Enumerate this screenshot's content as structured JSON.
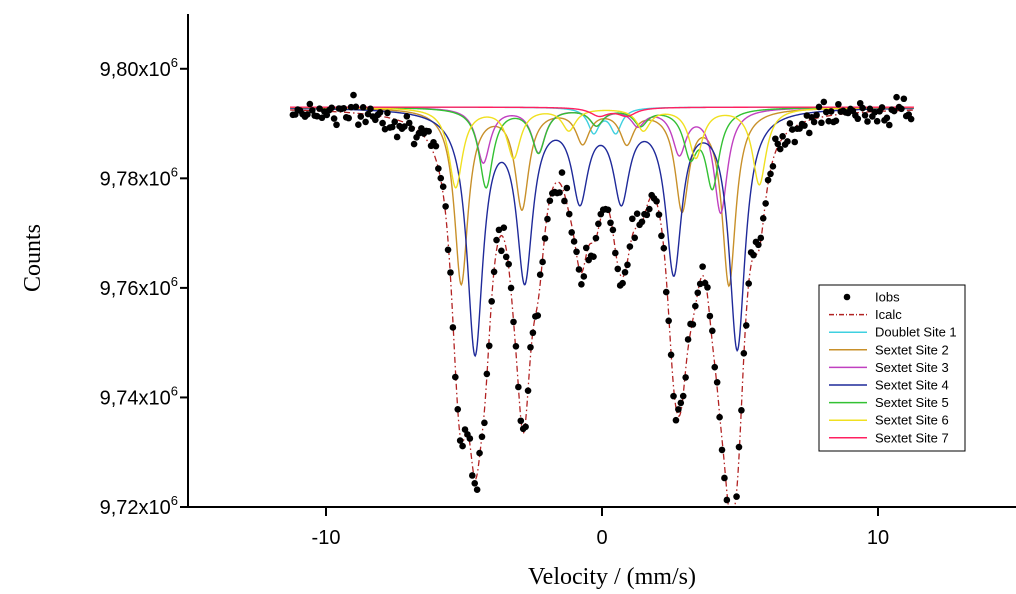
{
  "chart_data": {
    "type": "scatter",
    "xlabel": "Velocity / (mm/s)",
    "ylabel": "Counts",
    "xlim": [
      -15,
      15
    ],
    "ylim": [
      9720000,
      9810000
    ],
    "x_ticks": [
      -10,
      0,
      10
    ],
    "x_tick_labels": [
      "-10",
      "0",
      "10"
    ],
    "y_ticks": [
      9720000,
      9740000,
      9760000,
      9780000,
      9800000
    ],
    "y_tick_labels": [
      {
        "mantissa": "9,72x10",
        "exp": "6"
      },
      {
        "mantissa": "9,74x10",
        "exp": "6"
      },
      {
        "mantissa": "9,76x10",
        "exp": "6"
      },
      {
        "mantissa": "9,78x10",
        "exp": "6"
      },
      {
        "mantissa": "9,80x10",
        "exp": "6"
      }
    ],
    "grid": false,
    "legend_position": "lower-right",
    "baseline": 9793000,
    "series": [
      {
        "name": "Iobs",
        "kind": "points",
        "color": "#000000"
      },
      {
        "name": "Icalc",
        "kind": "line",
        "style": "dash-dot",
        "color": "#b22222"
      },
      {
        "name": "Doublet Site 1",
        "kind": "line",
        "color": "#3fd0e0",
        "lines": [
          {
            "x": -0.3,
            "depth": 4500,
            "width": 0.25
          },
          {
            "x": 0.5,
            "depth": 4500,
            "width": 0.25
          }
        ]
      },
      {
        "name": "Sextet Site 2",
        "kind": "line",
        "color": "#c8902a",
        "lines": [
          {
            "x": -5.1,
            "depth": 32000,
            "width": 0.3
          },
          {
            "x": -2.9,
            "depth": 18000,
            "width": 0.3
          },
          {
            "x": -0.7,
            "depth": 6000,
            "width": 0.3
          },
          {
            "x": 0.9,
            "depth": 6000,
            "width": 0.3
          },
          {
            "x": 2.9,
            "depth": 18000,
            "width": 0.3
          },
          {
            "x": 4.6,
            "depth": 32000,
            "width": 0.3
          }
        ]
      },
      {
        "name": "Sextet Site 3",
        "kind": "line",
        "color": "#c040c0",
        "lines": [
          {
            "x": -4.3,
            "depth": 10000,
            "width": 0.3
          },
          {
            "x": -2.3,
            "depth": 8000,
            "width": 0.3
          },
          {
            "x": -0.2,
            "depth": 3000,
            "width": 0.3
          },
          {
            "x": 1.3,
            "depth": 3000,
            "width": 0.3
          },
          {
            "x": 2.8,
            "depth": 8000,
            "width": 0.3
          },
          {
            "x": 4.3,
            "depth": 19000,
            "width": 0.3
          }
        ]
      },
      {
        "name": "Sextet Site 4",
        "kind": "line",
        "color": "#1f2a9a",
        "lines": [
          {
            "x": -4.6,
            "depth": 44000,
            "width": 0.35
          },
          {
            "x": -2.8,
            "depth": 30000,
            "width": 0.35
          },
          {
            "x": -0.8,
            "depth": 15500,
            "width": 0.35
          },
          {
            "x": 0.7,
            "depth": 15500,
            "width": 0.35
          },
          {
            "x": 2.6,
            "depth": 29000,
            "width": 0.35
          },
          {
            "x": 4.9,
            "depth": 43500,
            "width": 0.35
          }
        ]
      },
      {
        "name": "Sextet Site 5",
        "kind": "line",
        "color": "#33c133",
        "lines": [
          {
            "x": -4.2,
            "depth": 14500,
            "width": 0.3
          },
          {
            "x": -2.3,
            "depth": 8000,
            "width": 0.3
          },
          {
            "x": -0.2,
            "depth": 3000,
            "width": 0.3
          },
          {
            "x": 1.4,
            "depth": 3000,
            "width": 0.3
          },
          {
            "x": 3.2,
            "depth": 8000,
            "width": 0.3
          },
          {
            "x": 4.0,
            "depth": 14000,
            "width": 0.3
          }
        ]
      },
      {
        "name": "Sextet Site 6",
        "kind": "line",
        "color": "#f0e020",
        "lines": [
          {
            "x": -5.3,
            "depth": 14500,
            "width": 0.3
          },
          {
            "x": -3.2,
            "depth": 9000,
            "width": 0.3
          },
          {
            "x": -1.2,
            "depth": 4000,
            "width": 0.3
          },
          {
            "x": 1.5,
            "depth": 4000,
            "width": 0.3
          },
          {
            "x": 3.4,
            "depth": 9000,
            "width": 0.3
          },
          {
            "x": 5.7,
            "depth": 14000,
            "width": 0.3
          }
        ]
      },
      {
        "name": "Sextet Site 7",
        "kind": "line",
        "color": "#ff2060",
        "lines": [
          {
            "x": -0.1,
            "depth": 1500,
            "width": 0.4
          },
          {
            "x": 0.9,
            "depth": 1500,
            "width": 0.4
          }
        ]
      }
    ]
  }
}
